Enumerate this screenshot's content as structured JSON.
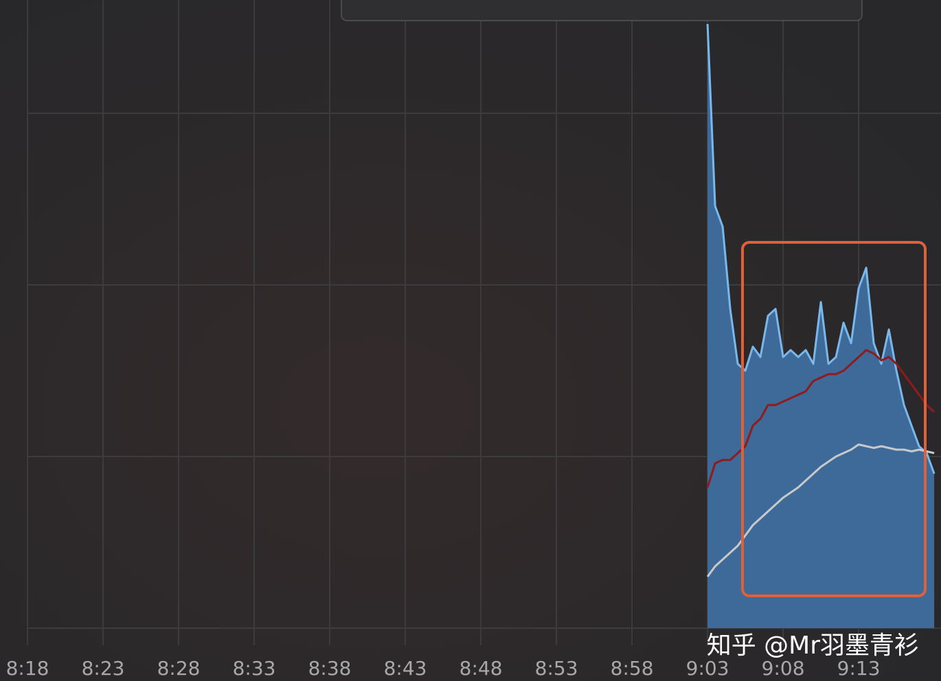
{
  "chart_data": {
    "type": "line",
    "xlim": [
      -1.82,
      60.45
    ],
    "xticks": [
      {
        "value": 0,
        "label": "8:18"
      },
      {
        "value": 5,
        "label": "8:23"
      },
      {
        "value": 10,
        "label": "8:28"
      },
      {
        "value": 15,
        "label": "8:33"
      },
      {
        "value": 20,
        "label": "8:38"
      },
      {
        "value": 25,
        "label": "8:43"
      },
      {
        "value": 30,
        "label": "8:48"
      },
      {
        "value": 35,
        "label": "8:53"
      },
      {
        "value": 40,
        "label": "8:58"
      },
      {
        "value": 45,
        "label": "9:03"
      },
      {
        "value": 50,
        "label": "9:08"
      },
      {
        "value": 55,
        "label": "9:13"
      }
    ],
    "ylim": [
      0,
      3.66
    ],
    "yticks": [
      0,
      1,
      2,
      3
    ],
    "grid": true,
    "x": [
      45,
      45.5,
      46,
      46.5,
      47,
      47.5,
      48,
      48.5,
      49,
      49.5,
      50,
      50.5,
      51,
      51.5,
      52,
      52.5,
      53,
      53.5,
      54,
      54.5,
      55,
      55.5,
      56,
      56.5,
      57,
      57.5,
      58,
      58.5,
      59,
      59.5,
      60
    ],
    "series": [
      {
        "color": "#7ab8ec",
        "fill": "#3d6a99",
        "area": true,
        "values": [
          3.52,
          2.46,
          2.34,
          1.86,
          1.54,
          1.5,
          1.64,
          1.58,
          1.82,
          1.86,
          1.58,
          1.62,
          1.58,
          1.62,
          1.54,
          1.9,
          1.54,
          1.58,
          1.78,
          1.66,
          1.98,
          2.1,
          1.66,
          1.54,
          1.74,
          1.5,
          1.3,
          1.18,
          1.06,
          1.02,
          0.9
        ]
      },
      {
        "color": "#8e1c1c",
        "values": [
          0.82,
          0.96,
          0.98,
          0.98,
          1.02,
          1.06,
          1.18,
          1.22,
          1.3,
          1.3,
          1.32,
          1.34,
          1.36,
          1.38,
          1.44,
          1.46,
          1.48,
          1.48,
          1.5,
          1.54,
          1.58,
          1.62,
          1.6,
          1.56,
          1.58,
          1.54,
          1.48,
          1.42,
          1.36,
          1.3,
          1.26
        ]
      },
      {
        "color": "#c9c9c9",
        "values": [
          0.3,
          0.36,
          0.4,
          0.44,
          0.48,
          0.54,
          0.6,
          0.64,
          0.68,
          0.72,
          0.76,
          0.79,
          0.82,
          0.86,
          0.9,
          0.94,
          0.97,
          1.0,
          1.02,
          1.04,
          1.07,
          1.06,
          1.05,
          1.06,
          1.05,
          1.04,
          1.04,
          1.03,
          1.04,
          1.03,
          1.02
        ]
      }
    ],
    "watermark": "知乎 @Mr羽墨青衫"
  }
}
